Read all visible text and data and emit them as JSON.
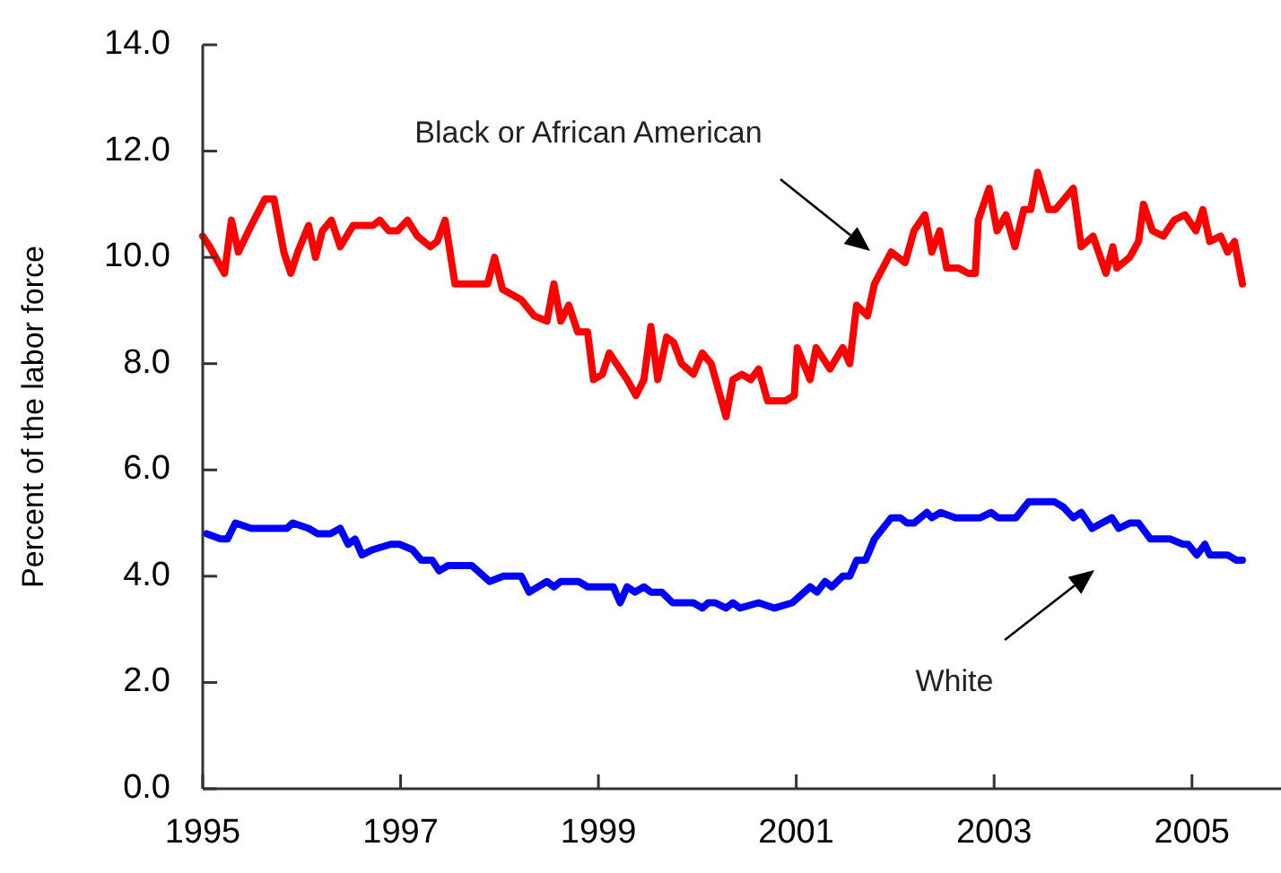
{
  "chart_data": {
    "type": "line",
    "ylabel": "Percent of the labor force",
    "xlim": [
      1995,
      2005.9
    ],
    "xticks": [
      1995,
      1997,
      1999,
      2001,
      2003,
      2005
    ],
    "ylim": [
      0,
      14
    ],
    "yticks": [
      {
        "value": 0,
        "label": "0.0"
      },
      {
        "value": 2,
        "label": "2.0"
      },
      {
        "value": 4,
        "label": "4.0"
      },
      {
        "value": 6,
        "label": "6.0"
      },
      {
        "value": 8,
        "label": "8.0"
      },
      {
        "value": 10,
        "label": "10.0"
      },
      {
        "value": 12,
        "label": "12.0"
      },
      {
        "value": 14,
        "label": "14.0"
      }
    ],
    "grid": false,
    "marker": "none",
    "line_style": "solid",
    "annotations": [
      "Black or African American",
      "White"
    ],
    "series": [
      {
        "color": "#ff0000",
        "x": [
          1995.0,
          1995.07,
          1995.22,
          1995.29,
          1995.36,
          1995.49,
          1995.63,
          1995.72,
          1995.82,
          1995.89,
          1995.96,
          1996.07,
          1996.14,
          1996.21,
          1996.3,
          1996.39,
          1996.52,
          1996.72,
          1996.79,
          1996.88,
          1996.97,
          1997.07,
          1997.17,
          1997.3,
          1997.37,
          1997.45,
          1997.55,
          1997.64,
          1997.72,
          1997.88,
          1997.95,
          1998.03,
          1998.22,
          1998.35,
          1998.48,
          1998.55,
          1998.62,
          1998.7,
          1998.79,
          1998.89,
          1998.95,
          1999.04,
          1999.11,
          1999.29,
          1999.38,
          1999.46,
          1999.53,
          1999.6,
          1999.69,
          1999.76,
          1999.84,
          1999.96,
          2000.05,
          2000.14,
          2000.29,
          2000.36,
          2000.45,
          2000.54,
          2000.62,
          2000.71,
          2000.89,
          2000.98,
          2001.01,
          2001.14,
          2001.2,
          2001.34,
          2001.47,
          2001.54,
          2001.61,
          2001.72,
          2001.79,
          2001.96,
          2002.1,
          2002.19,
          2002.3,
          2002.37,
          2002.45,
          2002.52,
          2002.64,
          2002.74,
          2002.81,
          2002.84,
          2002.95,
          2003.03,
          2003.12,
          2003.21,
          2003.3,
          2003.37,
          2003.44,
          2003.55,
          2003.62,
          2003.8,
          2003.88,
          2004.0,
          2004.13,
          2004.2,
          2004.24,
          2004.37,
          2004.46,
          2004.51,
          2004.6,
          2004.71,
          2004.82,
          2004.93,
          2005.04,
          2005.11,
          2005.18,
          2005.29,
          2005.36,
          2005.43,
          2005.51
        ],
        "values": [
          10.4,
          10.2,
          9.7,
          10.7,
          10.1,
          10.6,
          11.1,
          11.1,
          10.1,
          9.7,
          10.1,
          10.6,
          10.0,
          10.5,
          10.7,
          10.2,
          10.6,
          10.6,
          10.7,
          10.5,
          10.5,
          10.7,
          10.4,
          10.2,
          10.3,
          10.7,
          9.5,
          9.5,
          9.5,
          9.5,
          10.0,
          9.4,
          9.2,
          8.9,
          8.8,
          9.5,
          8.8,
          9.1,
          8.6,
          8.6,
          7.7,
          7.8,
          8.2,
          7.7,
          7.4,
          7.7,
          8.7,
          7.7,
          8.5,
          8.4,
          8.0,
          7.8,
          8.2,
          8.0,
          7.0,
          7.7,
          7.8,
          7.7,
          7.9,
          7.3,
          7.3,
          7.4,
          8.3,
          7.7,
          8.3,
          7.9,
          8.3,
          8.0,
          9.1,
          8.9,
          9.5,
          10.1,
          9.9,
          10.5,
          10.8,
          10.1,
          10.5,
          9.8,
          9.8,
          9.7,
          9.7,
          10.7,
          11.3,
          10.5,
          10.8,
          10.2,
          10.9,
          10.9,
          11.6,
          10.9,
          10.9,
          11.3,
          10.2,
          10.4,
          9.7,
          10.2,
          9.8,
          10.0,
          10.3,
          11.0,
          10.5,
          10.4,
          10.7,
          10.8,
          10.5,
          10.9,
          10.3,
          10.4,
          10.1,
          10.3,
          9.5
        ]
      },
      {
        "color": "#0000ff",
        "x": [
          1995.04,
          1995.18,
          1995.25,
          1995.33,
          1995.49,
          1995.85,
          1995.91,
          1996.07,
          1996.16,
          1996.29,
          1996.39,
          1996.47,
          1996.54,
          1996.61,
          1996.72,
          1996.9,
          1996.99,
          1997.12,
          1997.21,
          1997.32,
          1997.39,
          1997.48,
          1997.72,
          1997.9,
          1998.04,
          1998.15,
          1998.22,
          1998.3,
          1998.48,
          1998.55,
          1998.62,
          1998.8,
          1998.89,
          1999.15,
          1999.22,
          1999.29,
          1999.37,
          1999.46,
          1999.53,
          1999.64,
          1999.75,
          1999.96,
          2000.05,
          2000.11,
          2000.18,
          2000.29,
          2000.36,
          2000.43,
          2000.62,
          2000.78,
          2000.96,
          2001.14,
          2001.21,
          2001.29,
          2001.36,
          2001.47,
          2001.54,
          2001.61,
          2001.7,
          2001.79,
          2001.96,
          2002.05,
          2002.12,
          2002.19,
          2002.32,
          2002.37,
          2002.46,
          2002.61,
          2002.86,
          2002.97,
          2003.04,
          2003.22,
          2003.35,
          2003.61,
          2003.7,
          2003.8,
          2003.88,
          2003.99,
          2004.09,
          2004.19,
          2004.26,
          2004.37,
          2004.46,
          2004.58,
          2004.78,
          2004.91,
          2004.96,
          2005.05,
          2005.13,
          2005.18,
          2005.36,
          2005.45,
          2005.51
        ],
        "values": [
          4.8,
          4.7,
          4.7,
          5.0,
          4.9,
          4.9,
          5.0,
          4.9,
          4.8,
          4.8,
          4.9,
          4.6,
          4.7,
          4.4,
          4.5,
          4.6,
          4.6,
          4.5,
          4.3,
          4.3,
          4.1,
          4.2,
          4.2,
          3.9,
          4.0,
          4.0,
          4.0,
          3.7,
          3.9,
          3.8,
          3.9,
          3.9,
          3.8,
          3.8,
          3.5,
          3.8,
          3.7,
          3.8,
          3.7,
          3.7,
          3.5,
          3.5,
          3.4,
          3.5,
          3.5,
          3.4,
          3.5,
          3.4,
          3.5,
          3.4,
          3.5,
          3.8,
          3.7,
          3.9,
          3.8,
          4.0,
          4.0,
          4.3,
          4.3,
          4.7,
          5.1,
          5.1,
          5.0,
          5.0,
          5.2,
          5.1,
          5.2,
          5.1,
          5.1,
          5.2,
          5.1,
          5.1,
          5.4,
          5.4,
          5.3,
          5.1,
          5.2,
          4.9,
          5.0,
          5.1,
          4.9,
          5.0,
          5.0,
          4.7,
          4.7,
          4.6,
          4.6,
          4.4,
          4.6,
          4.4,
          4.4,
          4.3,
          4.3
        ]
      }
    ]
  }
}
